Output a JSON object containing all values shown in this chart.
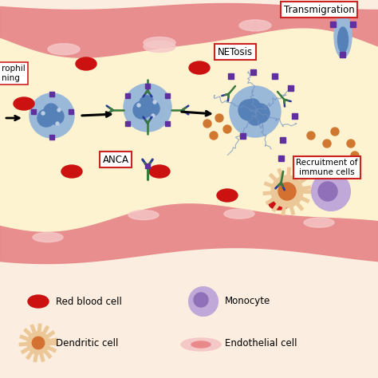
{
  "bg_color": "#fbeee0",
  "vessel_pink": "#e8898a",
  "vessel_light": "#f5c8c8",
  "lumen_color": "#fdf3d0",
  "rbc_color": "#cc1111",
  "neutrophil_color": "#9ab8d8",
  "neutrophil_inner": "#5580b8",
  "monocyte_color": "#c0a8d8",
  "monocyte_inner": "#9070b8",
  "dendritic_color": "#ecc898",
  "dendritic_inner": "#d47030",
  "orange_dot": "#d07830",
  "ab_green": "#3a7a3a",
  "ab_blue": "#2a3a9a",
  "purple_sq": "#6030a0",
  "label_border": "#cc2222",
  "transmig_label": "Transmigration",
  "netosis_label": "NETosis",
  "anca_label": "ANCA",
  "recruit_label": "Recruitment of\nimmune cells",
  "rbc_legend": "Red blood cell",
  "mono_legend": "Monocyte",
  "dend_legend": "Dendritic cell",
  "endo_legend": "Endothelial cell"
}
